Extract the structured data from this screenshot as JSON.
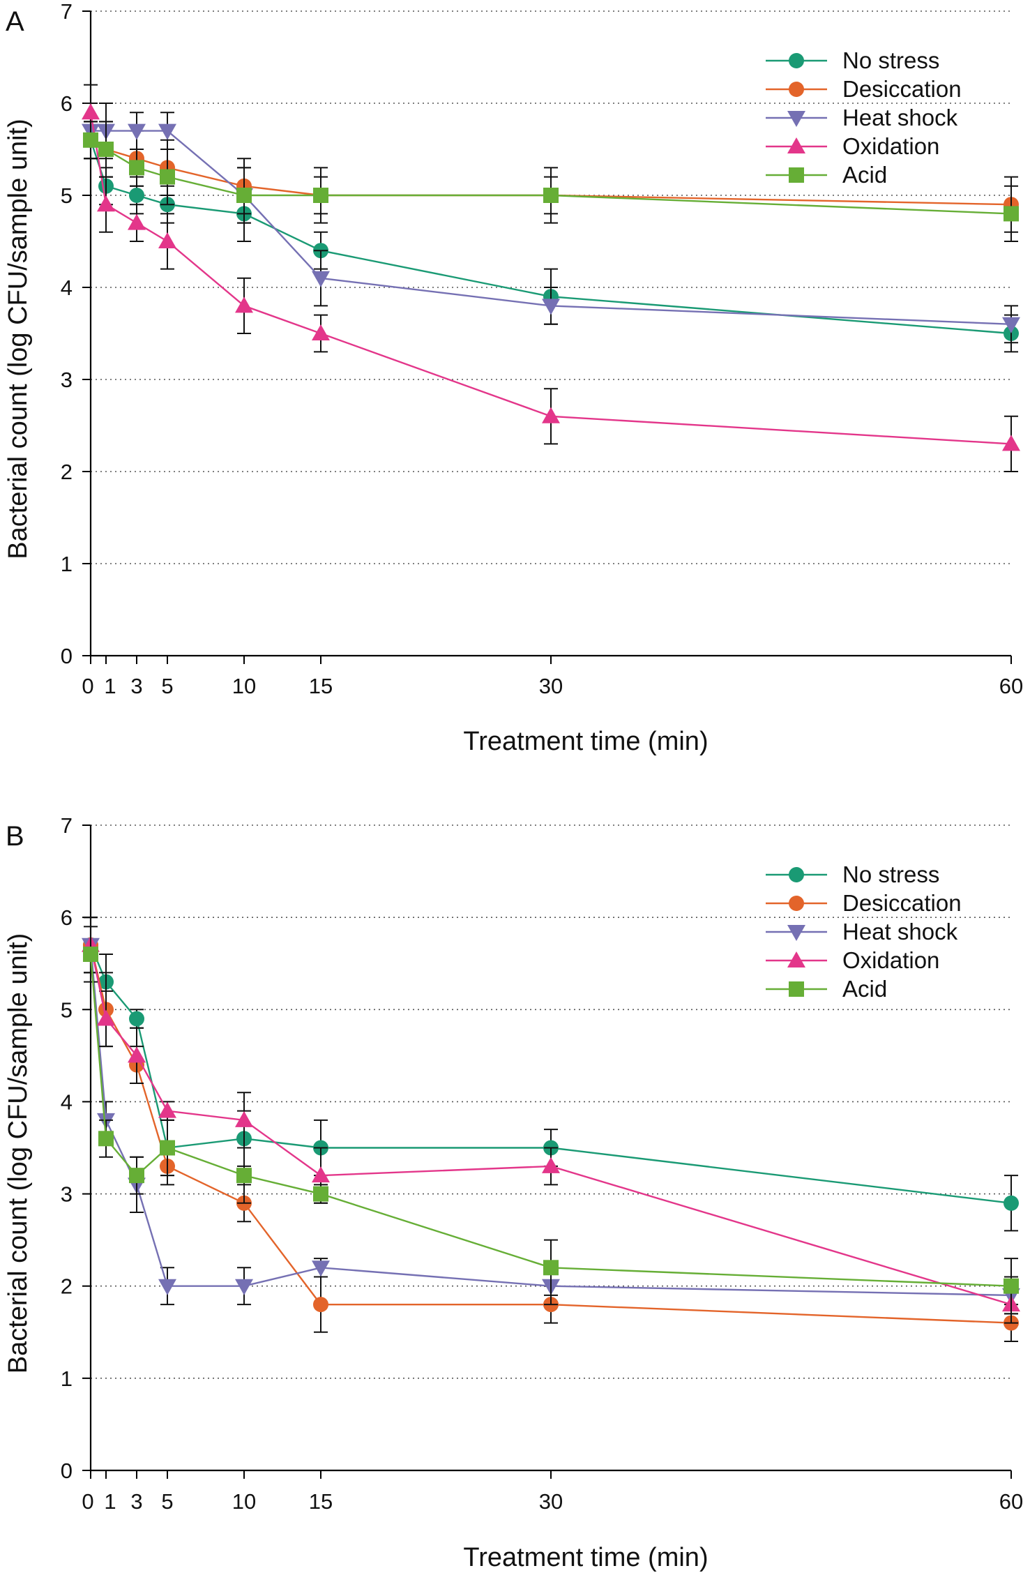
{
  "figure": {
    "width": 1477,
    "height": 2273
  },
  "colors": {
    "No stress": "#1a9a74",
    "Desiccation": "#e3642a",
    "Heat shock": "#7570b3",
    "Oxidation": "#e3368a",
    "Acid": "#66ae36",
    "axis": "#000000",
    "grid": "#555555"
  },
  "markers": {
    "No stress": "circle",
    "Desiccation": "circle",
    "Heat shock": "triangle-down",
    "Oxidation": "triangle-up",
    "Acid": "square"
  },
  "chart_data": [
    {
      "panel": "A",
      "type": "line",
      "xlabel": "Treatment time (min)",
      "ylabel": "Bacterial count (log CFU/sample unit)",
      "x": [
        0,
        1,
        3,
        5,
        10,
        15,
        30,
        60
      ],
      "xticks": [
        "0",
        "1",
        "3",
        "5",
        "10",
        "15",
        "30",
        "60"
      ],
      "yticks": [
        "0",
        "1",
        "2",
        "3",
        "4",
        "5",
        "6",
        "7"
      ],
      "xlim": [
        0,
        60
      ],
      "ylim": [
        0,
        7
      ],
      "grid": "horizontal dotted",
      "legend": "top-right",
      "series": [
        {
          "name": "No stress",
          "values": [
            5.6,
            5.1,
            5.0,
            4.9,
            4.8,
            4.4,
            3.9,
            3.5
          ],
          "errors": [
            0.2,
            0.2,
            0.2,
            0.2,
            0.3,
            0.2,
            0.3,
            0.2
          ]
        },
        {
          "name": "Desiccation",
          "values": [
            5.6,
            5.5,
            5.4,
            5.3,
            5.1,
            5.0,
            5.0,
            4.9
          ],
          "errors": [
            0.2,
            0.3,
            0.3,
            0.3,
            0.3,
            0.3,
            0.3,
            0.3
          ]
        },
        {
          "name": "Heat shock",
          "values": [
            5.7,
            5.7,
            5.7,
            5.7,
            5.0,
            4.1,
            3.8,
            3.6
          ],
          "errors": [
            0.3,
            0.3,
            0.2,
            0.2,
            0.3,
            0.3,
            0.2,
            0.2
          ]
        },
        {
          "name": "Oxidation",
          "values": [
            5.9,
            4.9,
            4.7,
            4.5,
            3.8,
            3.5,
            2.6,
            2.3
          ],
          "errors": [
            0.3,
            0.3,
            0.2,
            0.3,
            0.3,
            0.2,
            0.3,
            0.3
          ]
        },
        {
          "name": "Acid",
          "values": [
            5.6,
            5.5,
            5.3,
            5.2,
            5.0,
            5.0,
            5.0,
            4.8
          ],
          "errors": [
            0.2,
            0.3,
            0.2,
            0.3,
            0.3,
            0.2,
            0.2,
            0.3
          ]
        }
      ]
    },
    {
      "panel": "B",
      "type": "line",
      "xlabel": "Treatment time (min)",
      "ylabel": "Bacterial count (log CFU/sample unit)",
      "x": [
        0,
        1,
        3,
        5,
        10,
        15,
        30,
        60
      ],
      "xticks": [
        "0",
        "1",
        "3",
        "5",
        "10",
        "15",
        "30",
        "60"
      ],
      "yticks": [
        "0",
        "1",
        "2",
        "3",
        "4",
        "5",
        "6",
        "7"
      ],
      "xlim": [
        0,
        60
      ],
      "ylim": [
        0,
        7
      ],
      "grid": "horizontal dotted",
      "legend": "top-right",
      "series": [
        {
          "name": "No stress",
          "values": [
            5.7,
            5.3,
            4.9,
            3.5,
            3.6,
            3.5,
            3.5,
            2.9
          ],
          "errors": [
            0.3,
            0.3,
            0.1,
            0.3,
            0.3,
            0.3,
            0.2,
            0.3
          ]
        },
        {
          "name": "Desiccation",
          "values": [
            5.7,
            5.0,
            4.4,
            3.3,
            2.9,
            1.8,
            1.8,
            1.6
          ],
          "errors": [
            0.3,
            0.4,
            0.2,
            0.2,
            0.2,
            0.3,
            0.2,
            0.2
          ]
        },
        {
          "name": "Heat shock",
          "values": [
            5.7,
            3.8,
            3.1,
            2.0,
            2.0,
            2.2,
            2.0,
            1.9
          ],
          "errors": [
            0.3,
            0.2,
            0.3,
            0.2,
            0.2,
            0.1,
            0.2,
            0.2
          ]
        },
        {
          "name": "Oxidation",
          "values": [
            5.7,
            4.9,
            4.5,
            3.9,
            3.8,
            3.2,
            3.3,
            1.8
          ],
          "errors": [
            0.3,
            0.3,
            0.3,
            0.1,
            0.3,
            0.3,
            0.2,
            0.2
          ]
        },
        {
          "name": "Acid",
          "values": [
            5.6,
            3.6,
            3.2,
            3.5,
            3.2,
            3.0,
            2.2,
            2.0
          ],
          "errors": [
            0.3,
            0.2,
            0.2,
            0.3,
            0.3,
            0.1,
            0.3,
            0.3
          ]
        }
      ]
    }
  ]
}
